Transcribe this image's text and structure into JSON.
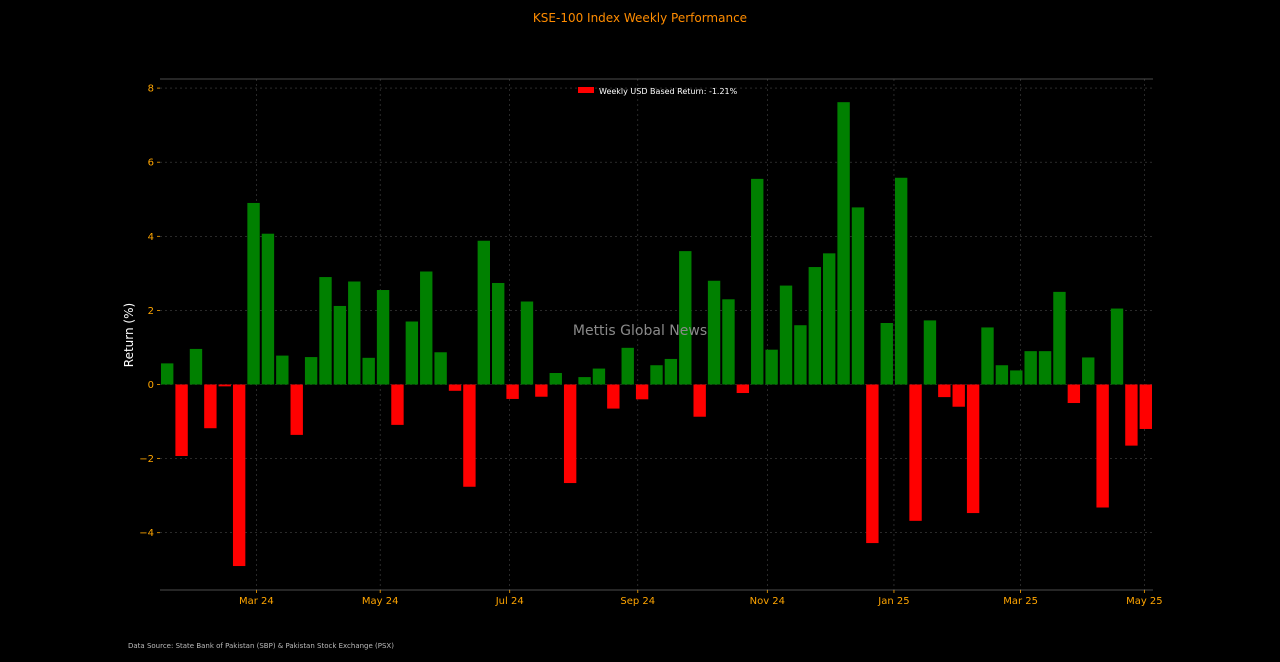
{
  "colors": {
    "background": "#000000",
    "positive": "#008000",
    "negative": "#ff0000",
    "accent": "#ff8c00",
    "axis_text": "#ffa500",
    "grid": "#444444",
    "legend_text": "#ffffff",
    "watermark": "#8a8a8a",
    "source_text": "#bbbbbb"
  },
  "chart_data": {
    "type": "bar",
    "title": "KSE-100 Index Weekly Performance",
    "xlabel": "",
    "ylabel": "Return (%)",
    "ylim": [
      -5.5,
      8.0
    ],
    "yticks": [
      -4,
      -2,
      0,
      2,
      4,
      6,
      8
    ],
    "ytick_labels": [
      "−4",
      "−2",
      "0",
      "2",
      "4",
      "6",
      "8"
    ],
    "grid": true,
    "legend_position": "top-center",
    "legend_label": "Weekly USD Based Return: -1.21%",
    "xtick_labels": [
      "Mar 24",
      "May 24",
      "Jul 24",
      "Sep 24",
      "Nov 24",
      "Jan 25",
      "Mar 25",
      "May 25"
    ],
    "xtick_week_index": [
      6.2,
      14.8,
      23.8,
      32.7,
      41.7,
      50.5,
      59.3,
      67.9
    ],
    "values": [
      0.57,
      -1.93,
      0.96,
      -1.18,
      -0.05,
      -4.9,
      4.9,
      4.07,
      0.78,
      -1.36,
      0.74,
      2.9,
      2.12,
      2.78,
      0.72,
      2.55,
      -1.09,
      1.7,
      3.05,
      0.87,
      -0.17,
      -2.76,
      3.88,
      2.74,
      -0.39,
      2.24,
      -0.33,
      0.31,
      -2.66,
      0.2,
      0.43,
      -0.65,
      0.99,
      -0.4,
      0.52,
      0.69,
      3.6,
      -0.87,
      2.8,
      2.3,
      -0.23,
      5.55,
      0.94,
      2.67,
      1.6,
      3.17,
      3.54,
      7.62,
      4.78,
      -4.28,
      1.66,
      5.58,
      -3.68,
      1.73,
      -0.34,
      -0.6,
      -3.47,
      1.54,
      0.52,
      0.38,
      0.9,
      0.9,
      2.5,
      -0.5,
      0.73,
      -3.32,
      2.05,
      -1.65,
      -1.2
    ]
  },
  "watermark": "Mettis Global News",
  "source_note": "Data Source: State Bank of Pakistan (SBP) & Pakistan Stock Exchange (PSX)"
}
